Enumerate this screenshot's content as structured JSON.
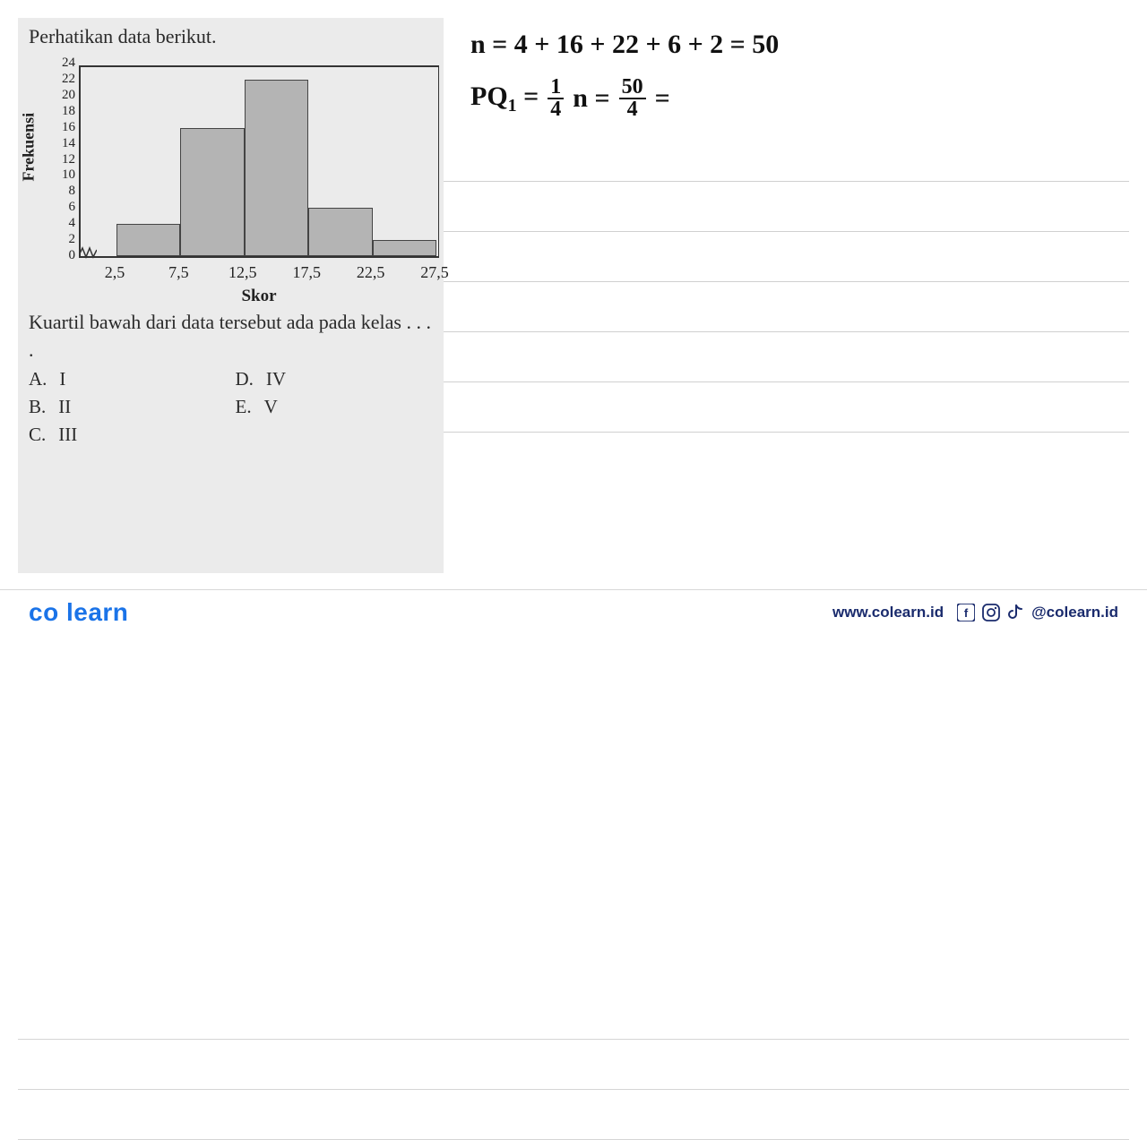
{
  "problem": {
    "title": "Perhatikan data berikut.",
    "question": "Kuartil bawah dari data tersebut ada pada kelas . . . .",
    "options": [
      {
        "letter": "A.",
        "text": "I"
      },
      {
        "letter": "B.",
        "text": "II"
      },
      {
        "letter": "C.",
        "text": "III"
      },
      {
        "letter": "D.",
        "text": "IV"
      },
      {
        "letter": "E.",
        "text": "V"
      }
    ]
  },
  "chart": {
    "type": "bar",
    "y_label": "Frekuensi",
    "x_label": "Skor",
    "y_ticks": [
      0,
      2,
      4,
      6,
      8,
      10,
      12,
      14,
      16,
      18,
      20,
      22,
      24
    ],
    "y_max": 24,
    "x_ticks": [
      "2,5",
      "7,5",
      "12,5",
      "17,5",
      "22,5",
      "27,5"
    ],
    "bars": [
      {
        "edge": "2,5",
        "value": 4
      },
      {
        "edge": "7,5",
        "value": 16
      },
      {
        "edge": "12,5",
        "value": 22
      },
      {
        "edge": "17,5",
        "value": 6
      },
      {
        "edge": "22,5",
        "value": 2
      }
    ],
    "bar_color": "#b4b4b4",
    "bar_border": "#444444",
    "axis_color": "#333333",
    "background_color": "#ebebeb",
    "tick_fontsize": 15,
    "label_fontsize": 18
  },
  "handwriting": {
    "line1": "n = 4 + 16 + 22 + 6 + 2  =  50",
    "line2_left": "PQ",
    "line2_sub": "1",
    "line2_eq1": " = ",
    "frac1_num": "1",
    "frac1_den": "4",
    "line2_mid": "n  = ",
    "frac2_num": "50",
    "frac2_den": "4",
    "line2_end": " ="
  },
  "footer": {
    "logo_co": "co",
    "logo_learn": "learn",
    "website": "www.colearn.id",
    "handle": "@colearn.id"
  },
  "ruled_line_positions": [
    182,
    238,
    294,
    350,
    406,
    462
  ],
  "full_ruled_positions": [
    520,
    576,
    632
  ]
}
